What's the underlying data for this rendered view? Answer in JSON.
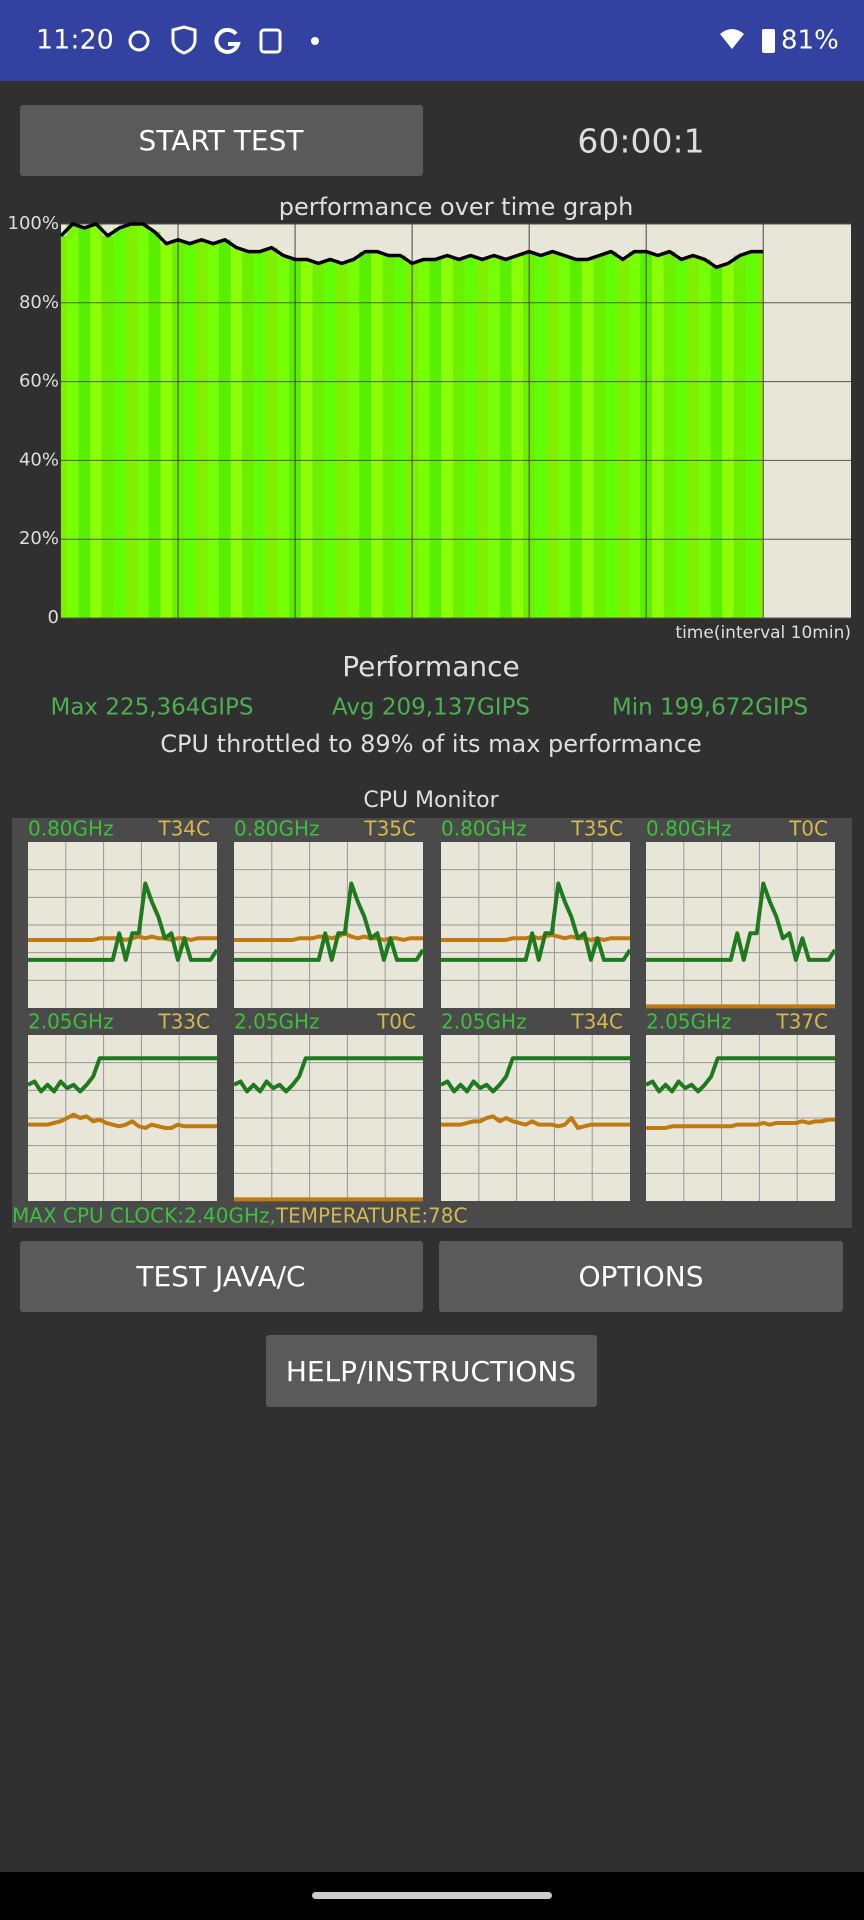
{
  "status_bar": {
    "time": "11:20",
    "battery": "81%"
  },
  "controls": {
    "start_button": "START TEST",
    "timer": "60:00:1"
  },
  "chart_data": {
    "type": "area",
    "title": "performance over time graph",
    "x_label": "time(interval 10min)",
    "x": [
      0,
      1,
      2,
      3,
      4,
      5,
      6,
      7,
      8,
      9,
      10,
      11,
      12,
      13,
      14,
      15,
      16,
      17,
      18,
      19,
      20,
      21,
      22,
      23,
      24,
      25,
      26,
      27,
      28,
      29,
      30,
      31,
      32,
      33,
      34,
      35,
      36,
      37,
      38,
      39,
      40,
      41,
      42,
      43,
      44,
      45,
      46,
      47,
      48,
      49,
      50,
      51,
      52,
      53,
      54,
      55,
      56,
      57,
      58,
      59,
      60
    ],
    "values": [
      97,
      100,
      99,
      100,
      97,
      99,
      100,
      100,
      98,
      95,
      96,
      95,
      96,
      95,
      96,
      94,
      93,
      93,
      94,
      92,
      91,
      91,
      90,
      91,
      90,
      91,
      93,
      93,
      92,
      92,
      90,
      91,
      91,
      92,
      91,
      92,
      91,
      92,
      91,
      92,
      93,
      92,
      93,
      92,
      91,
      91,
      92,
      93,
      91,
      93,
      93,
      92,
      93,
      91,
      92,
      91,
      89,
      90,
      92,
      93,
      93
    ],
    "xlim": [
      0,
      67.5
    ],
    "xticks": [
      10,
      20,
      30,
      40,
      50,
      60
    ],
    "ylim": [
      0,
      100
    ],
    "yticks": [
      0,
      {
        "value": 20,
        "label": "20%"
      },
      {
        "value": 40,
        "label": "40%"
      },
      {
        "value": 60,
        "label": "60%"
      },
      {
        "value": 80,
        "label": "80%"
      },
      {
        "value": 100,
        "label": "100%"
      }
    ],
    "grid": true,
    "line_color": "#000000",
    "fill_color": "#66ee00"
  },
  "performance": {
    "title": "Performance",
    "max": "Max 225,364GIPS",
    "avg": "Avg 209,137GIPS",
    "min": "Min 199,672GIPS",
    "summary": "CPU throttled to 89% of its max performance"
  },
  "cpu_monitor": {
    "title": "CPU Monitor",
    "ylim": [
      0,
      100
    ],
    "freq_color": "#1f7a1f",
    "temp_color": "#c07a12",
    "cores": [
      {
        "freq": "0.80GHz",
        "temp": "T34C",
        "freq_values": [
          29,
          29,
          29,
          29,
          29,
          29,
          29,
          29,
          29,
          29,
          29,
          29,
          29,
          29,
          45,
          29,
          45,
          45,
          75,
          64,
          55,
          42,
          45,
          29,
          42,
          29,
          29,
          29,
          29,
          35
        ],
        "temp_values": [
          41,
          41,
          41,
          41,
          41,
          41,
          41,
          41,
          41,
          41,
          41,
          42,
          42,
          42,
          42,
          41,
          42,
          43,
          42,
          43,
          42,
          42,
          41,
          42,
          42,
          41,
          42,
          42,
          42,
          42
        ]
      },
      {
        "freq": "0.80GHz",
        "temp": "T35C",
        "freq_values": [
          29,
          29,
          29,
          29,
          29,
          29,
          29,
          29,
          29,
          29,
          29,
          29,
          29,
          29,
          45,
          29,
          45,
          45,
          75,
          64,
          55,
          42,
          45,
          29,
          42,
          29,
          29,
          29,
          29,
          35
        ],
        "temp_values": [
          41,
          41,
          41,
          41,
          41,
          41,
          41,
          41,
          41,
          41,
          42,
          42,
          42,
          43,
          43,
          42,
          43,
          45,
          43,
          42,
          43,
          42,
          42,
          41,
          42,
          42,
          41,
          42,
          42,
          42
        ]
      },
      {
        "freq": "0.80GHz",
        "temp": "T35C",
        "freq_values": [
          29,
          29,
          29,
          29,
          29,
          29,
          29,
          29,
          29,
          29,
          29,
          29,
          29,
          29,
          45,
          29,
          45,
          45,
          75,
          64,
          55,
          42,
          45,
          29,
          42,
          29,
          29,
          29,
          29,
          35
        ],
        "temp_values": [
          41,
          41,
          41,
          41,
          41,
          41,
          41,
          41,
          41,
          41,
          41,
          42,
          42,
          42,
          43,
          42,
          43,
          44,
          43,
          42,
          43,
          42,
          42,
          41,
          42,
          41,
          42,
          42,
          42,
          42
        ]
      },
      {
        "freq": "0.80GHz",
        "temp": "T0C",
        "freq_values": [
          29,
          29,
          29,
          29,
          29,
          29,
          29,
          29,
          29,
          29,
          29,
          29,
          29,
          29,
          45,
          29,
          45,
          45,
          75,
          64,
          55,
          42,
          45,
          29,
          42,
          29,
          29,
          29,
          29,
          35
        ],
        "temp_values": [
          1,
          1,
          1,
          1,
          1,
          1,
          1,
          1,
          1,
          1,
          1,
          1,
          1,
          1,
          1,
          1,
          1,
          1,
          1,
          1,
          1,
          1,
          1,
          1,
          1,
          1,
          1,
          1,
          1,
          1
        ]
      },
      {
        "freq": "2.05GHz",
        "temp": "T33C",
        "freq_values": [
          70,
          72,
          66,
          70,
          66,
          72,
          68,
          70,
          66,
          70,
          75,
          86,
          86,
          86,
          86,
          86,
          86,
          86,
          86,
          86,
          86,
          86,
          86,
          86,
          86,
          86,
          86,
          86,
          86,
          86
        ],
        "temp_values": [
          46,
          46,
          46,
          46,
          47,
          48,
          50,
          52,
          50,
          51,
          48,
          49,
          47,
          46,
          45,
          46,
          48,
          45,
          44,
          46,
          45,
          44,
          44,
          46,
          45,
          45,
          45,
          45,
          45,
          45
        ]
      },
      {
        "freq": "2.05GHz",
        "temp": "T0C",
        "freq_values": [
          70,
          72,
          66,
          70,
          66,
          72,
          68,
          70,
          66,
          70,
          75,
          86,
          86,
          86,
          86,
          86,
          86,
          86,
          86,
          86,
          86,
          86,
          86,
          86,
          86,
          86,
          86,
          86,
          86,
          86
        ],
        "temp_values": [
          1,
          1,
          1,
          1,
          1,
          1,
          1,
          1,
          1,
          1,
          1,
          1,
          1,
          1,
          1,
          1,
          1,
          1,
          1,
          1,
          1,
          1,
          1,
          1,
          1,
          1,
          1,
          1,
          1,
          1
        ]
      },
      {
        "freq": "2.05GHz",
        "temp": "T34C",
        "freq_values": [
          70,
          72,
          66,
          70,
          66,
          72,
          68,
          70,
          66,
          70,
          75,
          86,
          86,
          86,
          86,
          86,
          86,
          86,
          86,
          86,
          86,
          86,
          86,
          86,
          86,
          86,
          86,
          86,
          86,
          86
        ],
        "temp_values": [
          46,
          46,
          46,
          46,
          47,
          48,
          48,
          50,
          51,
          48,
          50,
          48,
          47,
          46,
          48,
          46,
          46,
          46,
          45,
          46,
          50,
          44,
          45,
          46,
          46,
          46,
          46,
          46,
          46,
          46
        ]
      },
      {
        "freq": "2.05GHz",
        "temp": "T37C",
        "freq_values": [
          70,
          72,
          66,
          70,
          66,
          72,
          68,
          70,
          66,
          70,
          75,
          86,
          86,
          86,
          86,
          86,
          86,
          86,
          86,
          86,
          86,
          86,
          86,
          86,
          86,
          86,
          86,
          86,
          86,
          86
        ],
        "temp_values": [
          44,
          44,
          44,
          44,
          45,
          45,
          45,
          45,
          45,
          45,
          45,
          45,
          45,
          45,
          46,
          46,
          46,
          46,
          47,
          46,
          47,
          47,
          47,
          47,
          48,
          47,
          48,
          48,
          49,
          49
        ]
      }
    ],
    "footer_clock": "MAX CPU CLOCK:2.40GHz,",
    "footer_temp": "TEMPERATURE:78C"
  },
  "buttons": {
    "test_java_c": "TEST JAVA/C",
    "options": "OPTIONS",
    "help": "HELP/INSTRUCTIONS"
  }
}
